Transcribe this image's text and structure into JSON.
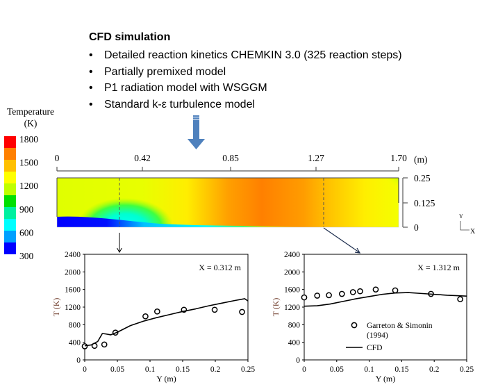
{
  "header": {
    "title": "CFD simulation",
    "bullets": [
      "Detailed reaction kinetics CHEMKIN 3.0 (325 reaction steps)",
      "Partially premixed model",
      "P1 radiation model with WSGGM",
      "Standard k-ε turbulence model"
    ]
  },
  "colorbar": {
    "title_line1": "Temperature",
    "title_line2": "(K)",
    "labels": [
      "1800",
      "1500",
      "1200",
      "900",
      "600",
      "300"
    ],
    "colors": [
      "#ff0000",
      "#ff8000",
      "#ffc000",
      "#ffff00",
      "#c0ff00",
      "#00e000",
      "#00f0a0",
      "#00ffff",
      "#00a0ff",
      "#0000ff"
    ]
  },
  "contour": {
    "x_ticks": [
      "0",
      "0.42",
      "0.85",
      "1.27",
      "1.70"
    ],
    "x_unit": "(m)",
    "y_ticks": [
      "0.25",
      "0.125",
      "0"
    ],
    "axis_y_label": "Y",
    "axis_x_label": "X"
  },
  "chart_data": [
    {
      "type": "scatter",
      "title": "X = 0.312 m",
      "xlabel": "Y (m)",
      "ylabel": "T (K)",
      "xlim": [
        0,
        0.25
      ],
      "ylim": [
        0,
        2400
      ],
      "x_ticks": [
        "0",
        "0.05",
        "0.1",
        "0.15",
        "0.2",
        "0.25"
      ],
      "y_ticks": [
        "0",
        "400",
        "800",
        "1200",
        "1600",
        "2000",
        "2400"
      ],
      "series": [
        {
          "name": "Garreton & Simonin (1994)",
          "style": "open-circle",
          "x": [
            0,
            0.015,
            0.03,
            0.047,
            0.093,
            0.111,
            0.152,
            0.199,
            0.241
          ],
          "y": [
            310,
            320,
            350,
            620,
            990,
            1100,
            1140,
            1140,
            1090
          ]
        },
        {
          "name": "CFD",
          "style": "line",
          "x": [
            0,
            0.01,
            0.02,
            0.027,
            0.032,
            0.04,
            0.05,
            0.07,
            0.09,
            0.11,
            0.13,
            0.15,
            0.17,
            0.19,
            0.21,
            0.23,
            0.245,
            0.25
          ],
          "y": [
            320,
            340,
            420,
            600,
            590,
            570,
            630,
            780,
            880,
            960,
            1030,
            1100,
            1160,
            1230,
            1290,
            1350,
            1390,
            1340
          ]
        }
      ]
    },
    {
      "type": "scatter",
      "title": "X = 1.312 m",
      "xlabel": "Y (m)",
      "ylabel": "T (K)",
      "xlim": [
        0,
        0.25
      ],
      "ylim": [
        0,
        2400
      ],
      "x_ticks": [
        "0",
        "0.05",
        "0.1",
        "0.15",
        "0.2",
        "0.25"
      ],
      "y_ticks": [
        "0",
        "400",
        "800",
        "1200",
        "1600",
        "2000",
        "2400"
      ],
      "legend": {
        "position": "bottom-right",
        "entries": [
          "Garreton & Simonin",
          "(1994)",
          "CFD"
        ]
      },
      "series": [
        {
          "name": "Garreton & Simonin (1994)",
          "style": "open-circle",
          "x": [
            0,
            0.02,
            0.038,
            0.058,
            0.075,
            0.086,
            0.11,
            0.14,
            0.195,
            0.24
          ],
          "y": [
            1420,
            1460,
            1470,
            1500,
            1540,
            1560,
            1600,
            1580,
            1500,
            1380
          ]
        },
        {
          "name": "CFD",
          "style": "line",
          "x": [
            0,
            0.02,
            0.04,
            0.06,
            0.08,
            0.1,
            0.12,
            0.14,
            0.16,
            0.18,
            0.2,
            0.22,
            0.25
          ],
          "y": [
            1220,
            1230,
            1270,
            1330,
            1390,
            1440,
            1490,
            1520,
            1530,
            1510,
            1490,
            1470,
            1450
          ]
        }
      ]
    }
  ]
}
